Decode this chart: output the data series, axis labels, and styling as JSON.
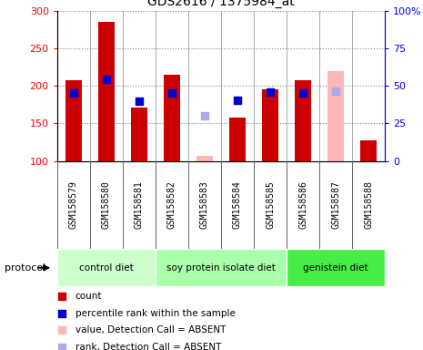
{
  "title": "GDS2616 / 1375984_at",
  "samples": [
    "GSM158579",
    "GSM158580",
    "GSM158581",
    "GSM158582",
    "GSM158583",
    "GSM158584",
    "GSM158585",
    "GSM158586",
    "GSM158587",
    "GSM158588"
  ],
  "count_values": [
    207,
    285,
    171,
    215,
    null,
    158,
    195,
    207,
    null,
    127
  ],
  "count_absent_values": [
    null,
    null,
    null,
    null,
    107,
    null,
    null,
    null,
    219,
    null
  ],
  "rank_values": [
    190,
    208,
    179,
    190,
    null,
    181,
    192,
    190,
    null,
    null
  ],
  "rank_absent_values": [
    null,
    null,
    null,
    null,
    160,
    null,
    null,
    null,
    193,
    null
  ],
  "count_color": "#cc0000",
  "count_absent_color": "#ffb6b6",
  "rank_color": "#0000cc",
  "rank_absent_color": "#aaaaee",
  "ylim_left": [
    100,
    300
  ],
  "ylim_right": [
    0,
    100
  ],
  "yticks_left": [
    100,
    150,
    200,
    250,
    300
  ],
  "yticks_right": [
    0,
    25,
    50,
    75,
    100
  ],
  "groups": [
    {
      "label": "control diet",
      "start": 0,
      "end": 3,
      "color": "#ccffcc"
    },
    {
      "label": "soy protein isolate diet",
      "start": 3,
      "end": 7,
      "color": "#aaffaa"
    },
    {
      "label": "genistein diet",
      "start": 7,
      "end": 10,
      "color": "#44ee44"
    }
  ],
  "sample_bg_color": "#cccccc",
  "plot_bg_color": "#ffffff",
  "fig_bg_color": "#ffffff",
  "grid_color": "#888888",
  "divider_color": "#888888",
  "bar_width": 0.5
}
